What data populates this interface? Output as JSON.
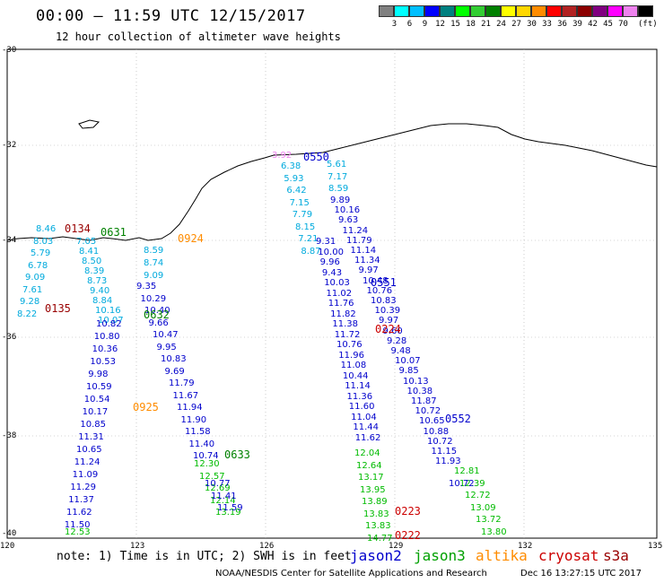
{
  "header": {
    "title": "00:00 — 11:59 UTC 12/15/2017",
    "subtitle": "12 hour collection of altimeter wave heights"
  },
  "colorbar": {
    "colors": [
      "#808080",
      "#00ffff",
      "#00bfff",
      "#0000ff",
      "#008080",
      "#00ff00",
      "#32cd32",
      "#008000",
      "#ffff00",
      "#ffd700",
      "#ff8c00",
      "#ff0000",
      "#b22222",
      "#8b0000",
      "#800080",
      "#ff00ff",
      "#ee82ee",
      "#000000"
    ],
    "labels": [
      "3",
      "6",
      "9",
      "12",
      "15",
      "18",
      "21",
      "24",
      "27",
      "30",
      "33",
      "36",
      "39",
      "42",
      "45",
      "70"
    ],
    "unit": "(ft)"
  },
  "axes": {
    "lat_labels": [
      "-30",
      "-32",
      "-34",
      "-36",
      "-38",
      "-40"
    ],
    "lon_labels": [
      "120",
      "123",
      "126",
      "129",
      "132",
      "135"
    ]
  },
  "footer": {
    "note": "note: 1) Time is in UTC; 2) SWH is in feet",
    "legend": [
      {
        "name": "jason2",
        "color": "#0000cc"
      },
      {
        "name": "jason3",
        "color": "#00a000"
      },
      {
        "name": "altika",
        "color": "#ff8c00"
      },
      {
        "name": "cryosat",
        "color": "#cc0000"
      },
      {
        "name": "s3a",
        "color": "#990000"
      }
    ],
    "credit": "NOAA/NESDIS Center for Satellite Applications and Research",
    "timestamp": "Dec 16 13:27:15 UTC 2017"
  },
  "passes": [
    {
      "label": "0134",
      "color": "#990000"
    },
    {
      "label": "0631",
      "color": "#008000"
    },
    {
      "label": "0924",
      "color": "#ff8c00"
    },
    {
      "label": "0135",
      "color": "#990000"
    },
    {
      "label": "0632",
      "color": "#008000"
    },
    {
      "label": "0925",
      "color": "#ff8c00"
    },
    {
      "label": "0633",
      "color": "#008000"
    },
    {
      "label": "0550",
      "color": "#0000cc"
    },
    {
      "label": "0551",
      "color": "#0000cc"
    },
    {
      "label": "0224",
      "color": "#cc0000"
    },
    {
      "label": "0552",
      "color": "#0000cc"
    },
    {
      "label": "0223",
      "color": "#cc0000"
    },
    {
      "label": "0222",
      "color": "#cc0000"
    }
  ],
  "tracks": [
    {
      "name": "track-west-1",
      "color": "#00aadd",
      "values": [
        "8.46",
        "8.03",
        "5.79",
        "6.78",
        "9.09",
        "7.61",
        "9.28",
        "8.22"
      ]
    },
    {
      "name": "track-west-2",
      "color": "#00aadd",
      "values": [
        "7.05",
        "8.41",
        "8.50",
        "8.39",
        "8.73",
        "9.40",
        "8.84",
        "10.16",
        "10.07"
      ]
    },
    {
      "name": "track-west-3",
      "color": "#0000cc",
      "values": [
        "10.82",
        "10.80",
        "10.36",
        "10.53",
        "9.98",
        "10.59",
        "10.54",
        "10.17",
        "10.85",
        "11.31",
        "10.65",
        "11.24",
        "11.09",
        "11.29",
        "11.37",
        "11.62",
        "11.50"
      ]
    },
    {
      "name": "track-west-3-tail",
      "color": "#00bb00",
      "values": [
        "12.53"
      ]
    },
    {
      "name": "track-west-4",
      "color": "#00aadd",
      "values": [
        "8.59",
        "8.74",
        "9.09"
      ]
    },
    {
      "name": "track-west-4b",
      "color": "#0000cc",
      "values": [
        "9.35",
        "10.29",
        "10.40",
        "9.66",
        "10.47",
        "9.95",
        "10.83",
        "9.69",
        "11.79",
        "11.67",
        "11.94",
        "11.90",
        "11.58",
        "11.40",
        "10.74"
      ]
    },
    {
      "name": "track-west-4-tail",
      "color": "#00bb00",
      "values": [
        "12.30",
        "12.57",
        "12.69",
        "12.14",
        "13.19"
      ]
    },
    {
      "name": "track-west-4c",
      "color": "#0000cc",
      "values": [
        "10.77",
        "11.41",
        "11.59"
      ]
    },
    {
      "name": "track-central-1",
      "color": "#00aadd",
      "values": [
        "6.38",
        "5.93",
        "6.42",
        "7.15",
        "7.79",
        "8.15",
        "7.21",
        "8.87"
      ]
    },
    {
      "name": "track-central-1b",
      "color": "#0000cc",
      "values": [
        "9.31",
        "10.00",
        "9.96",
        "9.43",
        "10.03",
        "11.02",
        "11.76",
        "11.82",
        "11.38",
        "11.72",
        "10.76",
        "11.96",
        "11.08",
        "10.44",
        "11.14",
        "11.36",
        "11.60",
        "11.04",
        "11.44",
        "11.62"
      ]
    },
    {
      "name": "track-central-1-tail",
      "color": "#00bb00",
      "values": [
        "12.04",
        "12.64",
        "13.17",
        "13.95",
        "13.89",
        "13.83",
        "13.83",
        "14.77"
      ]
    },
    {
      "name": "track-central-2",
      "color": "#00aadd",
      "values": [
        "5.61",
        "7.17",
        "8.59"
      ]
    },
    {
      "name": "track-central-2b",
      "color": "#0000cc",
      "values": [
        "9.89",
        "10.16",
        "9.63",
        "11.24",
        "11.79",
        "11.14",
        "11.34",
        "9.97",
        "10.48",
        "10.76",
        "10.83",
        "10.39",
        "9.97",
        "9.60",
        "9.28",
        "9.48",
        "10.07",
        "9.85",
        "10.13",
        "10.38",
        "11.87",
        "10.72",
        "10.65",
        "10.88",
        "10.72",
        "11.15",
        "11.93"
      ]
    },
    {
      "name": "track-central-2-tail",
      "color": "#00bb00",
      "values": [
        "12.81",
        "12.39",
        "12.72",
        "13.09",
        "13.72",
        "13.80"
      ]
    },
    {
      "name": "track-central-2c",
      "color": "#0000cc",
      "values": [
        "10.72"
      ]
    }
  ],
  "misc": {
    "pink_value": "3.92"
  }
}
